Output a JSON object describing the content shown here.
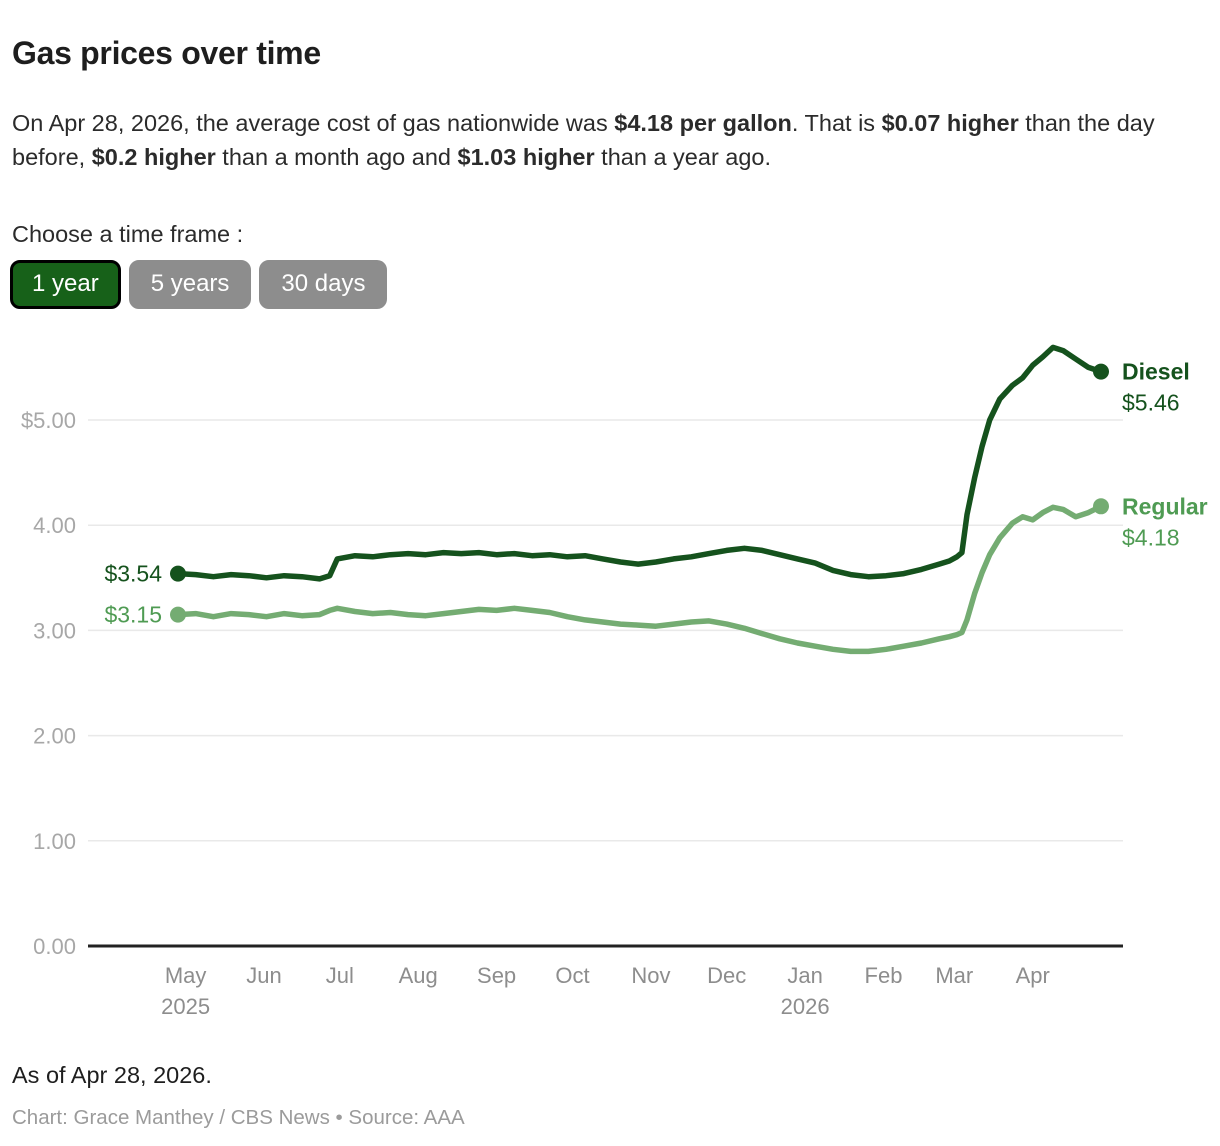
{
  "header": {
    "title": "Gas prices over time",
    "description_segments": [
      {
        "text": "On Apr 28, 2026, the average cost of gas nationwide was ",
        "bold": false
      },
      {
        "text": "$4.18 per gallon",
        "bold": true
      },
      {
        "text": ". That is ",
        "bold": false
      },
      {
        "text": "$0.07 higher",
        "bold": true
      },
      {
        "text": " than the day before, ",
        "bold": false
      },
      {
        "text": "$0.2 higher",
        "bold": true
      },
      {
        "text": " than a month ago and ",
        "bold": false
      },
      {
        "text": "$1.03 higher",
        "bold": true
      },
      {
        "text": " than a year ago.",
        "bold": false
      }
    ]
  },
  "controls": {
    "label": "Choose a time frame :",
    "buttons": [
      {
        "label": "1 year",
        "selected": true,
        "bg": "#176119",
        "border": "#000000",
        "text_color": "#ffffff"
      },
      {
        "label": "5 years",
        "selected": false,
        "bg": "#8d8d8d",
        "border": "#8d8d8d",
        "text_color": "#ffffff"
      },
      {
        "label": "30 days",
        "selected": false,
        "bg": "#8d8d8d",
        "border": "#8d8d8d",
        "text_color": "#ffffff"
      }
    ]
  },
  "chart_data": {
    "type": "line",
    "title": "Gas prices over time",
    "x_unit": "days since Apr 28, 2025",
    "x_domain_days": [
      0,
      365
    ],
    "y_domain": [
      0,
      5.8
    ],
    "grid": true,
    "grid_color": "#e9e9e9",
    "axis_color": "#222222",
    "y_tick_label_color": "#a7a7a7",
    "x_tick_label_color": "#8d8d8d",
    "legend_position": "end-of-line",
    "y_ticks": [
      {
        "label": "$5.00",
        "value": 5
      },
      {
        "label": "4.00",
        "value": 4
      },
      {
        "label": "3.00",
        "value": 3
      },
      {
        "label": "2.00",
        "value": 2
      },
      {
        "label": "1.00",
        "value": 1
      },
      {
        "label": "0.00",
        "value": 0
      }
    ],
    "x_ticks": [
      {
        "label": "May",
        "sublabel": "2025",
        "day": 3
      },
      {
        "label": "Jun",
        "day": 34
      },
      {
        "label": "Jul",
        "day": 64
      },
      {
        "label": "Aug",
        "day": 95
      },
      {
        "label": "Sep",
        "day": 126
      },
      {
        "label": "Oct",
        "day": 156
      },
      {
        "label": "Nov",
        "day": 187
      },
      {
        "label": "Dec",
        "day": 217
      },
      {
        "label": "Jan",
        "sublabel": "2026",
        "day": 248
      },
      {
        "label": "Feb",
        "day": 279
      },
      {
        "label": "Mar",
        "day": 307
      },
      {
        "label": "Apr",
        "day": 338
      }
    ],
    "days": [
      0,
      7,
      14,
      21,
      28,
      35,
      42,
      49,
      56,
      60,
      63,
      70,
      77,
      84,
      91,
      98,
      105,
      112,
      119,
      126,
      133,
      140,
      147,
      154,
      161,
      168,
      175,
      182,
      189,
      196,
      203,
      210,
      217,
      224,
      231,
      238,
      245,
      252,
      259,
      266,
      273,
      280,
      287,
      294,
      301,
      305,
      308,
      310,
      312,
      315,
      318,
      321,
      325,
      330,
      334,
      338,
      342,
      346,
      350,
      355,
      360,
      365
    ],
    "series": [
      {
        "name": "Diesel",
        "color": "#15521d",
        "label_color": "#15521d",
        "start_label": "$3.54",
        "end_label": "$5.46",
        "start_value": 3.54,
        "end_value": 5.46,
        "values": [
          3.54,
          3.53,
          3.51,
          3.53,
          3.52,
          3.5,
          3.52,
          3.51,
          3.49,
          3.52,
          3.68,
          3.71,
          3.7,
          3.72,
          3.73,
          3.72,
          3.74,
          3.73,
          3.74,
          3.72,
          3.73,
          3.71,
          3.72,
          3.7,
          3.71,
          3.68,
          3.65,
          3.63,
          3.65,
          3.68,
          3.7,
          3.73,
          3.76,
          3.78,
          3.76,
          3.72,
          3.68,
          3.64,
          3.57,
          3.53,
          3.51,
          3.52,
          3.54,
          3.58,
          3.63,
          3.66,
          3.7,
          3.74,
          4.1,
          4.45,
          4.75,
          5.0,
          5.2,
          5.33,
          5.4,
          5.52,
          5.6,
          5.69,
          5.66,
          5.58,
          5.5,
          5.46
        ]
      },
      {
        "name": "Regular",
        "color": "#74ac72",
        "label_color": "#4f9b53",
        "start_label": "$3.15",
        "end_label": "$4.18",
        "start_value": 3.15,
        "end_value": 4.18,
        "values": [
          3.15,
          3.16,
          3.13,
          3.16,
          3.15,
          3.13,
          3.16,
          3.14,
          3.15,
          3.19,
          3.21,
          3.18,
          3.16,
          3.17,
          3.15,
          3.14,
          3.16,
          3.18,
          3.2,
          3.19,
          3.21,
          3.19,
          3.17,
          3.13,
          3.1,
          3.08,
          3.06,
          3.05,
          3.04,
          3.06,
          3.08,
          3.09,
          3.06,
          3.02,
          2.97,
          2.92,
          2.88,
          2.85,
          2.82,
          2.8,
          2.8,
          2.82,
          2.85,
          2.88,
          2.92,
          2.94,
          2.96,
          2.98,
          3.1,
          3.35,
          3.55,
          3.72,
          3.88,
          4.02,
          4.08,
          4.05,
          4.12,
          4.17,
          4.15,
          4.08,
          4.12,
          4.18
        ]
      }
    ]
  },
  "footer": {
    "as_of": "As of Apr 28, 2026.",
    "credit": "Chart: Grace Manthey / CBS News • Source: AAA"
  }
}
